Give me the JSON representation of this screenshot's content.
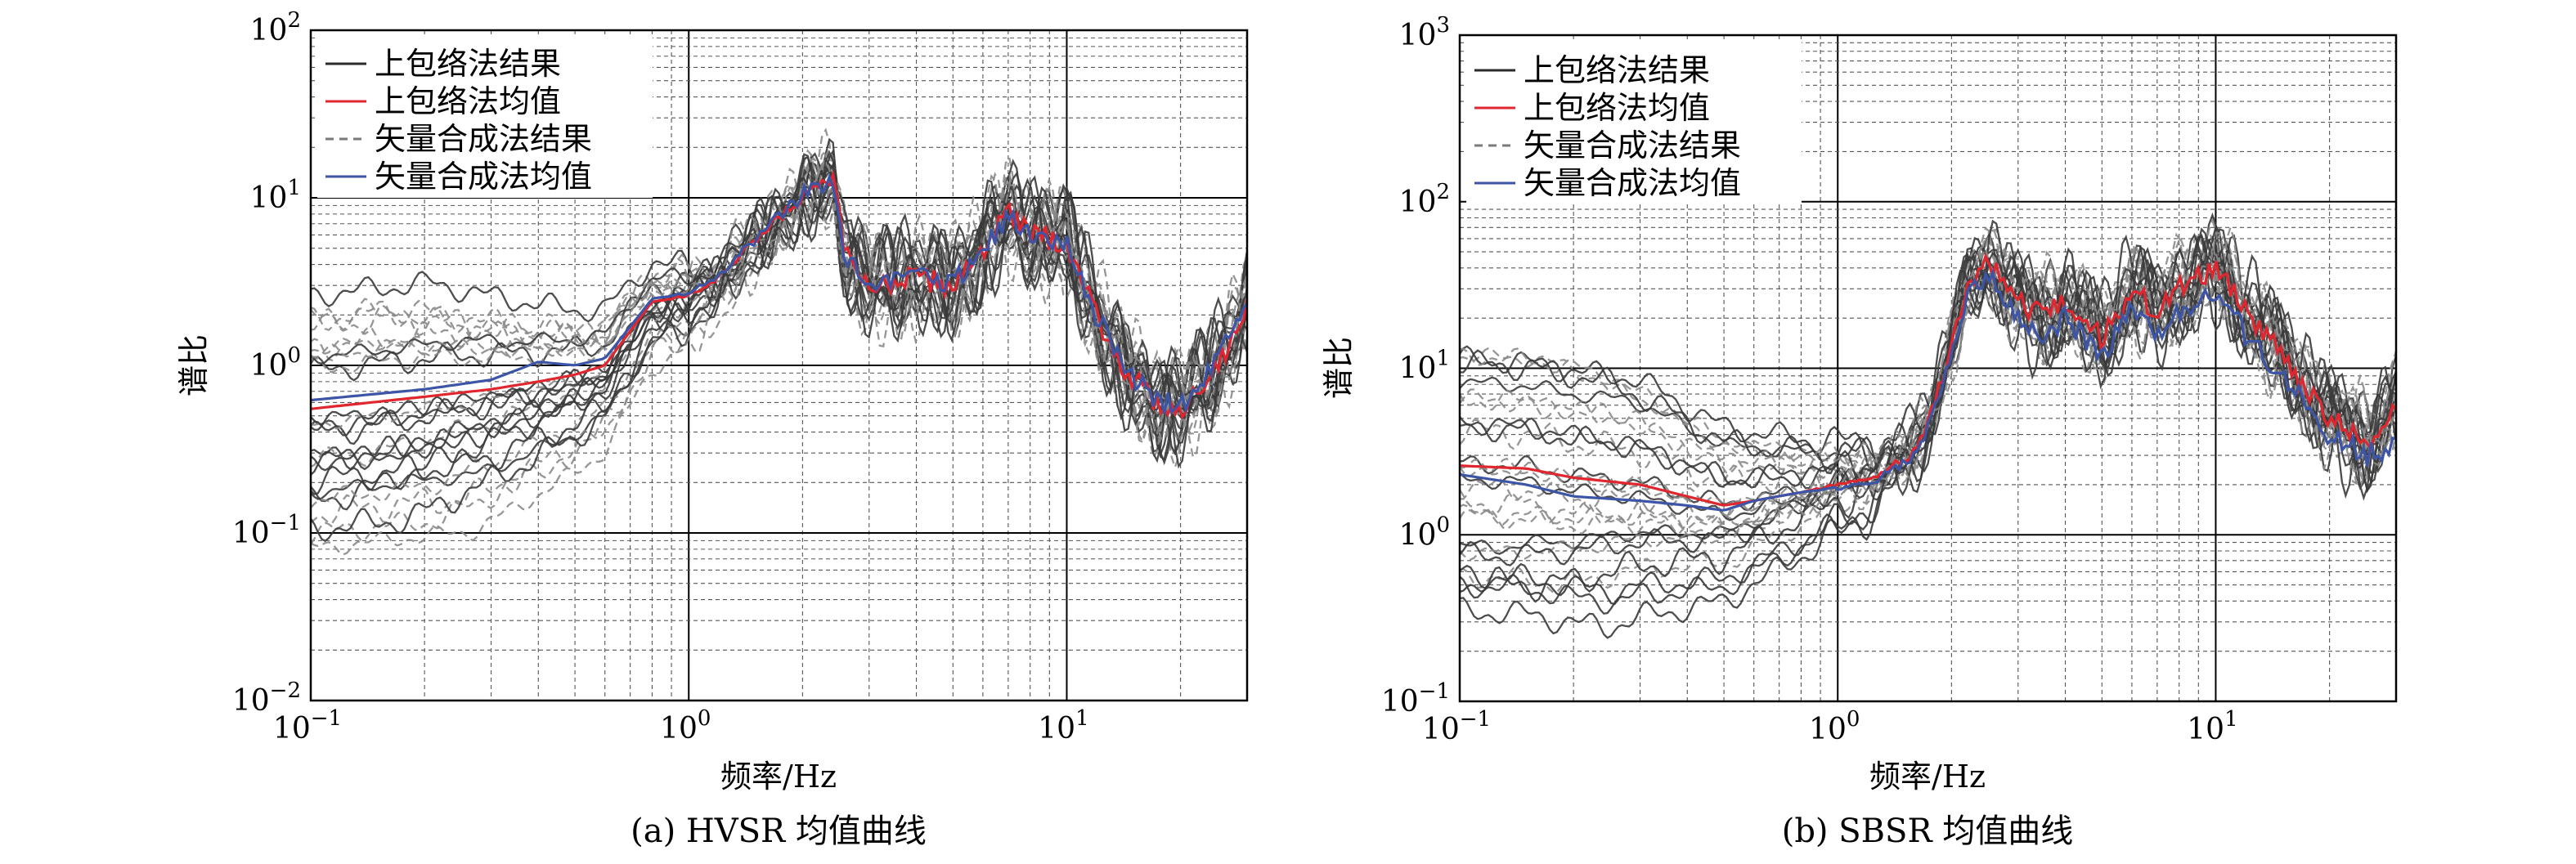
{
  "chart_data": [
    {
      "type": "line",
      "caption": "(a) HVSR 均值曲线",
      "xlabel": "频率/Hz",
      "ylabel": "谱比",
      "xscale": "log",
      "yscale": "log",
      "xlim": [
        0.1,
        30
      ],
      "ylim": [
        0.01,
        100
      ],
      "xticks": [
        {
          "base": "10",
          "exp": "−1"
        },
        {
          "base": "10",
          "exp": "0"
        },
        {
          "base": "10",
          "exp": "1"
        }
      ],
      "yticks": [
        {
          "base": "10",
          "exp": "−2"
        },
        {
          "base": "10",
          "exp": "−1"
        },
        {
          "base": "10",
          "exp": "0"
        },
        {
          "base": "10",
          "exp": "1"
        },
        {
          "base": "10",
          "exp": "2"
        }
      ],
      "grid": true,
      "legend_position": "top-left",
      "legend": [
        {
          "label": "上包络法结果",
          "color": "#2b2b2b",
          "dash": "solid"
        },
        {
          "label": "上包络法均值",
          "color": "#e0262e",
          "dash": "solid"
        },
        {
          "label": "矢量合成法结果",
          "color": "#7a7a7a",
          "dash": "dashed"
        },
        {
          "label": "矢量合成法均值",
          "color": "#3d55a6",
          "dash": "solid"
        }
      ],
      "series": [
        {
          "role": "upper-envelope-mean",
          "color": "#e0262e",
          "x": [
            0.1,
            0.2,
            0.3,
            0.4,
            0.5,
            0.6,
            0.7,
            0.8,
            1.0,
            1.2,
            1.5,
            2.0,
            2.4,
            2.6,
            3.0,
            4.0,
            5.0,
            6.0,
            7.0,
            8.0,
            10.0,
            12.0,
            14.0,
            17.0,
            20.0,
            25.0,
            30.0
          ],
          "y": [
            0.55,
            0.65,
            0.72,
            0.8,
            0.88,
            1.0,
            1.6,
            2.4,
            2.6,
            3.3,
            5.5,
            10.0,
            13.0,
            4.5,
            3.0,
            3.3,
            3.0,
            5.0,
            8.0,
            6.0,
            5.5,
            2.0,
            1.0,
            0.6,
            0.55,
            1.0,
            2.2
          ]
        },
        {
          "role": "vector-synthesis-mean",
          "color": "#3d55a6",
          "x": [
            0.1,
            0.2,
            0.3,
            0.4,
            0.5,
            0.6,
            0.7,
            0.8,
            1.0,
            1.2,
            1.5,
            2.0,
            2.4,
            2.6,
            3.0,
            4.0,
            5.0,
            6.0,
            7.0,
            8.0,
            10.0,
            12.0,
            14.0,
            17.0,
            20.0,
            25.0,
            30.0
          ],
          "y": [
            0.62,
            0.72,
            0.82,
            1.05,
            1.0,
            1.1,
            1.7,
            2.5,
            2.7,
            3.4,
            5.6,
            10.5,
            12.5,
            4.3,
            3.0,
            3.4,
            3.1,
            5.2,
            7.5,
            5.8,
            5.2,
            2.0,
            1.0,
            0.62,
            0.58,
            1.05,
            2.5
          ]
        }
      ]
    },
    {
      "type": "line",
      "caption": "(b) SBSR 均值曲线",
      "xlabel": "频率/Hz",
      "ylabel": "谱比",
      "xscale": "log",
      "yscale": "log",
      "xlim": [
        0.1,
        30
      ],
      "ylim": [
        0.1,
        1000
      ],
      "xticks": [
        {
          "base": "10",
          "exp": "−1"
        },
        {
          "base": "10",
          "exp": "0"
        },
        {
          "base": "10",
          "exp": "1"
        }
      ],
      "yticks": [
        {
          "base": "10",
          "exp": "−1"
        },
        {
          "base": "10",
          "exp": "0"
        },
        {
          "base": "10",
          "exp": "1"
        },
        {
          "base": "10",
          "exp": "2"
        },
        {
          "base": "10",
          "exp": "3"
        }
      ],
      "grid": true,
      "legend_position": "top-left",
      "legend": [
        {
          "label": "上包络法结果",
          "color": "#2b2b2b",
          "dash": "solid"
        },
        {
          "label": "上包络法均值",
          "color": "#e0262e",
          "dash": "solid"
        },
        {
          "label": "矢量合成法结果",
          "color": "#7a7a7a",
          "dash": "dashed"
        },
        {
          "label": "矢量合成法均值",
          "color": "#3d55a6",
          "dash": "solid"
        }
      ],
      "series": [
        {
          "role": "upper-envelope-mean",
          "color": "#e0262e",
          "x": [
            0.1,
            0.15,
            0.2,
            0.3,
            0.4,
            0.5,
            0.6,
            0.8,
            1.0,
            1.3,
            1.6,
            1.8,
            2.0,
            2.2,
            2.5,
            3.0,
            3.5,
            4.0,
            5.0,
            6.0,
            7.0,
            8.0,
            10.0,
            12.0,
            15.0,
            20.0,
            25.0,
            30.0
          ],
          "y": [
            2.6,
            2.5,
            2.2,
            2.0,
            1.7,
            1.5,
            1.6,
            1.8,
            2.0,
            2.3,
            3.2,
            6.0,
            14.0,
            30.0,
            45.0,
            25.0,
            20.0,
            25.0,
            15.0,
            30.0,
            22.0,
            30.0,
            40.0,
            22.0,
            12.0,
            5.0,
            3.5,
            6.0
          ]
        },
        {
          "role": "vector-synthesis-mean",
          "color": "#3d55a6",
          "x": [
            0.1,
            0.15,
            0.2,
            0.3,
            0.4,
            0.5,
            0.6,
            0.8,
            1.0,
            1.3,
            1.6,
            1.8,
            2.0,
            2.2,
            2.5,
            3.0,
            3.5,
            4.0,
            5.0,
            6.0,
            7.0,
            8.0,
            10.0,
            12.0,
            15.0,
            20.0,
            25.0,
            30.0
          ],
          "y": [
            2.3,
            2.0,
            1.7,
            1.6,
            1.5,
            1.4,
            1.6,
            1.8,
            1.9,
            2.2,
            3.0,
            5.5,
            12.0,
            26.0,
            38.0,
            20.0,
            16.0,
            20.0,
            12.0,
            22.0,
            16.0,
            22.0,
            28.0,
            16.0,
            9.0,
            4.0,
            3.0,
            3.5
          ]
        }
      ]
    }
  ]
}
